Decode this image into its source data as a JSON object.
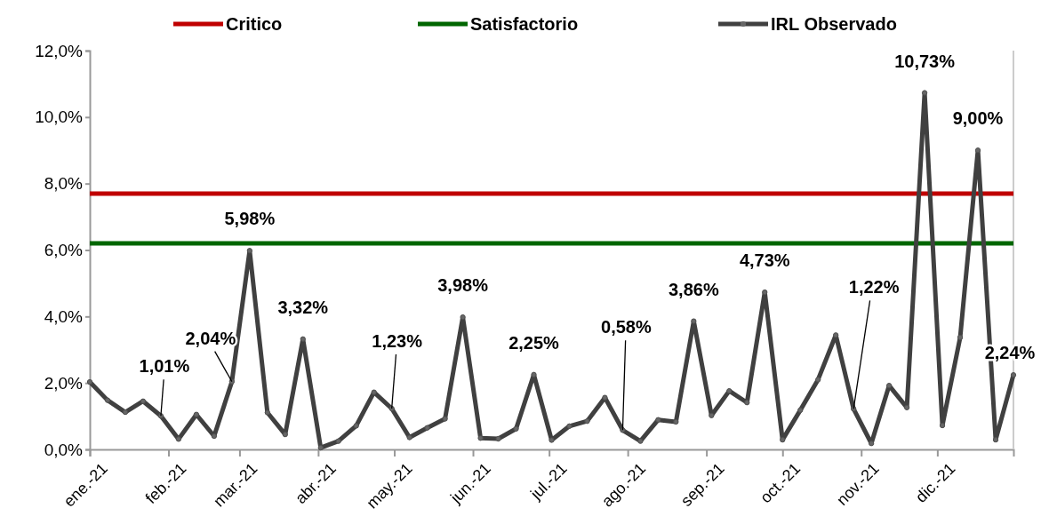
{
  "chart_data": {
    "type": "line",
    "x": [
      "2021-01-01",
      "2021-01-08",
      "2021-01-15",
      "2021-01-22",
      "2021-01-29",
      "2021-02-05",
      "2021-02-12",
      "2021-02-19",
      "2021-02-26",
      "2021-03-05",
      "2021-03-12",
      "2021-03-19",
      "2021-03-26",
      "2021-04-02",
      "2021-04-09",
      "2021-04-16",
      "2021-04-23",
      "2021-04-30",
      "2021-05-07",
      "2021-05-14",
      "2021-05-21",
      "2021-05-28",
      "2021-06-04",
      "2021-06-11",
      "2021-06-18",
      "2021-06-25",
      "2021-07-02",
      "2021-07-09",
      "2021-07-16",
      "2021-07-23",
      "2021-07-30",
      "2021-08-06",
      "2021-08-13",
      "2021-08-20",
      "2021-08-27",
      "2021-09-03",
      "2021-09-10",
      "2021-09-17",
      "2021-09-24",
      "2021-10-01",
      "2021-10-08",
      "2021-10-15",
      "2021-10-22",
      "2021-10-29",
      "2021-11-05",
      "2021-11-12",
      "2021-11-19",
      "2021-11-26",
      "2021-12-03",
      "2021-12-10",
      "2021-12-17",
      "2021-12-24",
      "2021-12-31"
    ],
    "series": [
      {
        "name": "IRL Observado",
        "color": "#404040",
        "values": [
          2.03,
          1.48,
          1.12,
          1.45,
          1.01,
          0.31,
          1.05,
          0.4,
          2.04,
          5.98,
          1.11,
          0.45,
          3.32,
          0.05,
          0.25,
          0.71,
          1.72,
          1.23,
          0.36,
          0.65,
          0.92,
          3.98,
          0.34,
          0.32,
          0.62,
          2.25,
          0.28,
          0.7,
          0.85,
          1.56,
          0.58,
          0.25,
          0.89,
          0.83,
          3.86,
          1.02,
          1.76,
          1.41,
          4.73,
          0.29,
          1.18,
          2.1,
          3.44,
          1.22,
          0.18,
          1.92,
          1.26,
          10.73,
          0.72,
          3.37,
          9.0,
          0.29,
          2.24
        ],
        "value_labels": [
          null,
          null,
          null,
          null,
          "1,01%",
          null,
          null,
          null,
          "2,04%",
          "5,98%",
          null,
          null,
          "3,32%",
          null,
          null,
          null,
          null,
          "1,23%",
          null,
          null,
          null,
          "3,98%",
          null,
          null,
          null,
          "2,25%",
          null,
          null,
          null,
          null,
          "0,58%",
          null,
          null,
          null,
          "3,86%",
          null,
          null,
          null,
          "4,73%",
          null,
          null,
          null,
          null,
          "1,22%",
          null,
          null,
          null,
          "10,73%",
          null,
          null,
          "9,00%",
          null,
          "2,24%"
        ]
      }
    ],
    "ref_lines": [
      {
        "axis": "y",
        "value": 7.7,
        "label": "Critico",
        "color": "#c00000"
      },
      {
        "axis": "y",
        "value": 6.2,
        "label": "Satisfactorio",
        "color": "#006600"
      }
    ],
    "xlim": [
      "2021-01-01",
      "2021-12-31"
    ],
    "xticks": [
      {
        "value": "2021-01-01",
        "label": "ene.-21"
      },
      {
        "value": "2021-02-01",
        "label": "feb.-21"
      },
      {
        "value": "2021-03-01",
        "label": "mar.-21"
      },
      {
        "value": "2021-04-01",
        "label": "abr.-21"
      },
      {
        "value": "2021-05-01",
        "label": "may.-21"
      },
      {
        "value": "2021-06-01",
        "label": "jun.-21"
      },
      {
        "value": "2021-07-01",
        "label": "jul.-21"
      },
      {
        "value": "2021-08-01",
        "label": "ago.-21"
      },
      {
        "value": "2021-09-01",
        "label": "sep.-21"
      },
      {
        "value": "2021-10-01",
        "label": "oct.-21"
      },
      {
        "value": "2021-11-01",
        "label": "nov.-21"
      },
      {
        "value": "2021-12-01",
        "label": "dic.-21"
      }
    ],
    "ylim": [
      0,
      12
    ],
    "yticks": [
      {
        "value": 0,
        "label": "0,0%"
      },
      {
        "value": 2,
        "label": "2,0%"
      },
      {
        "value": 4,
        "label": "4,0%"
      },
      {
        "value": 6,
        "label": "6,0%"
      },
      {
        "value": 8,
        "label": "8,0%"
      },
      {
        "value": 10,
        "label": "10,0%"
      },
      {
        "value": 12,
        "label": "12,0%"
      }
    ],
    "grid": false,
    "legend": "top",
    "marker": "circle",
    "line_style": "solid"
  }
}
